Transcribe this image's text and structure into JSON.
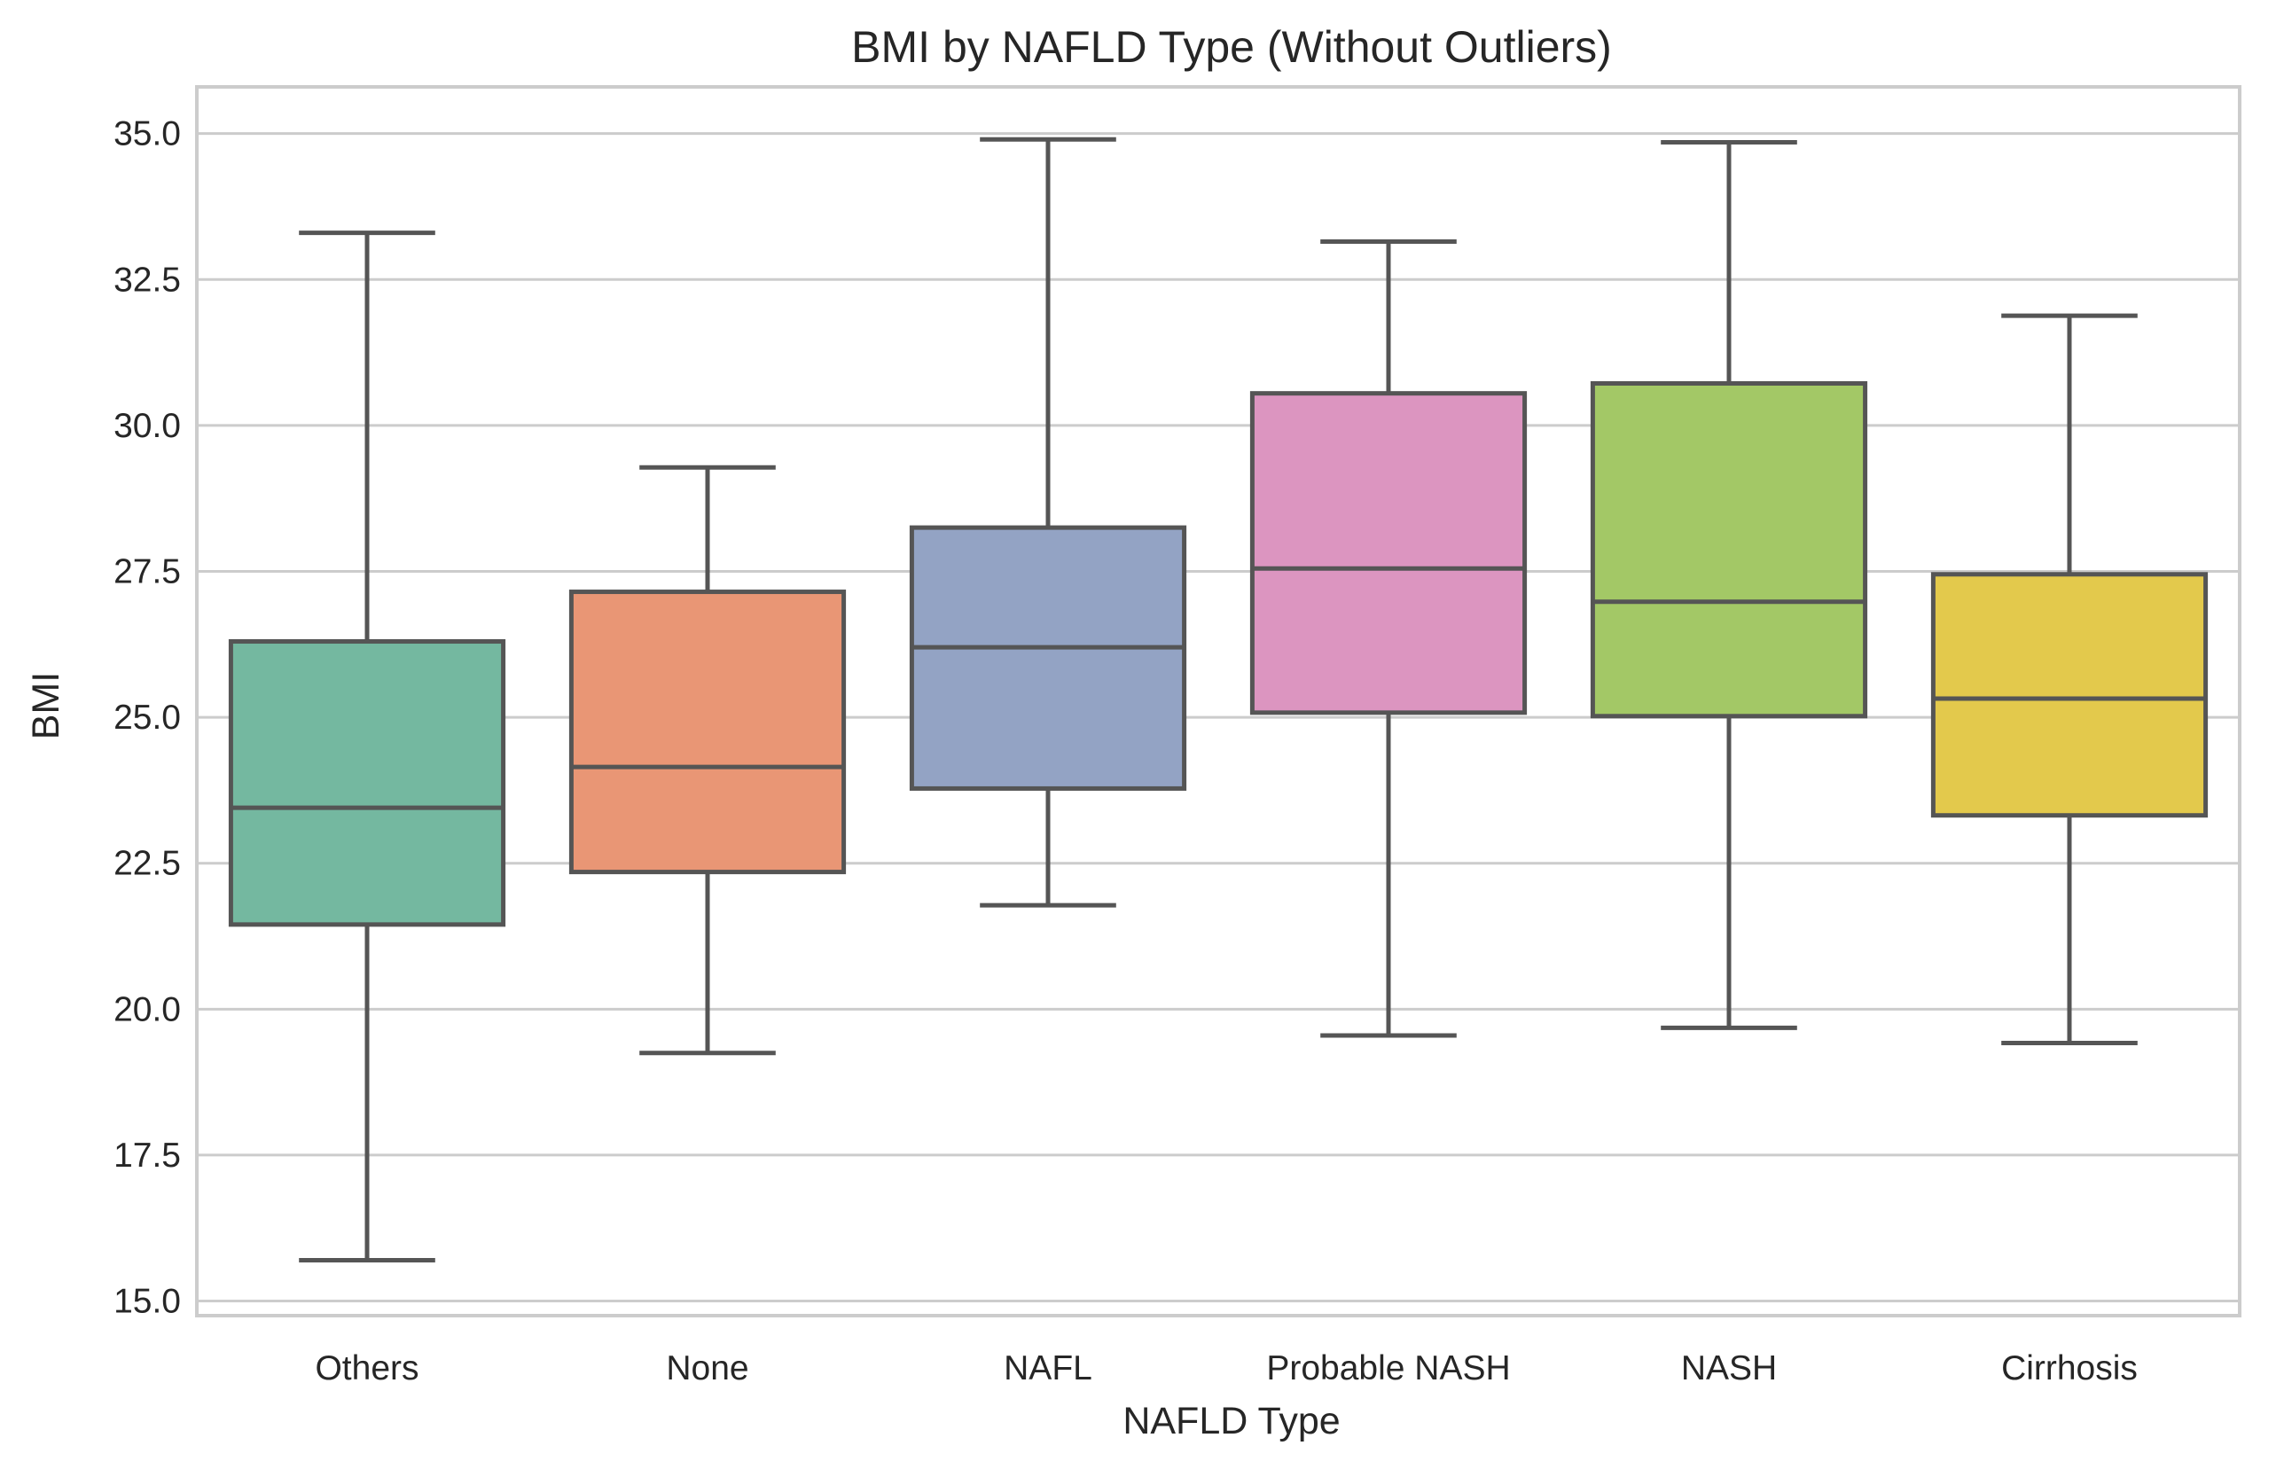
{
  "chart_data": {
    "type": "box",
    "title": "BMI by NAFLD Type (Without Outliers)",
    "xlabel": "NAFLD Type",
    "ylabel": "BMI",
    "ylim": [
      14.75,
      35.8
    ],
    "yticks": [
      15.0,
      17.5,
      20.0,
      22.5,
      25.0,
      27.5,
      30.0,
      32.5,
      35.0
    ],
    "ytick_labels": [
      "15.0",
      "17.5",
      "20.0",
      "22.5",
      "25.0",
      "27.5",
      "30.0",
      "32.5",
      "35.0"
    ],
    "grid": true,
    "categories": [
      "Others",
      "None",
      "NAFL",
      "Probable NASH",
      "NASH",
      "Cirrhosis"
    ],
    "boxes": [
      {
        "category": "Others",
        "whisker_low": 15.7,
        "q1": 21.45,
        "median": 23.45,
        "q3": 26.3,
        "whisker_high": 33.3,
        "color": "#74b8a0"
      },
      {
        "category": "None",
        "whisker_low": 19.25,
        "q1": 22.35,
        "median": 24.15,
        "q3": 27.15,
        "whisker_high": 29.28,
        "color": "#e99675"
      },
      {
        "category": "NAFL",
        "whisker_low": 21.78,
        "q1": 23.78,
        "median": 26.2,
        "q3": 28.25,
        "whisker_high": 34.9,
        "color": "#93a3c4"
      },
      {
        "category": "Probable NASH",
        "whisker_low": 19.55,
        "q1": 25.08,
        "median": 27.55,
        "q3": 30.55,
        "whisker_high": 33.15,
        "color": "#dc95c0"
      },
      {
        "category": "NASH",
        "whisker_low": 19.68,
        "q1": 25.02,
        "median": 26.98,
        "q3": 30.72,
        "whisker_high": 34.85,
        "color": "#a3c866"
      },
      {
        "category": "Cirrhosis",
        "whisker_low": 19.42,
        "q1": 23.32,
        "median": 25.32,
        "q3": 27.45,
        "whisker_high": 31.88,
        "color": "#e3c94c"
      }
    ],
    "line_color": "#555555"
  }
}
